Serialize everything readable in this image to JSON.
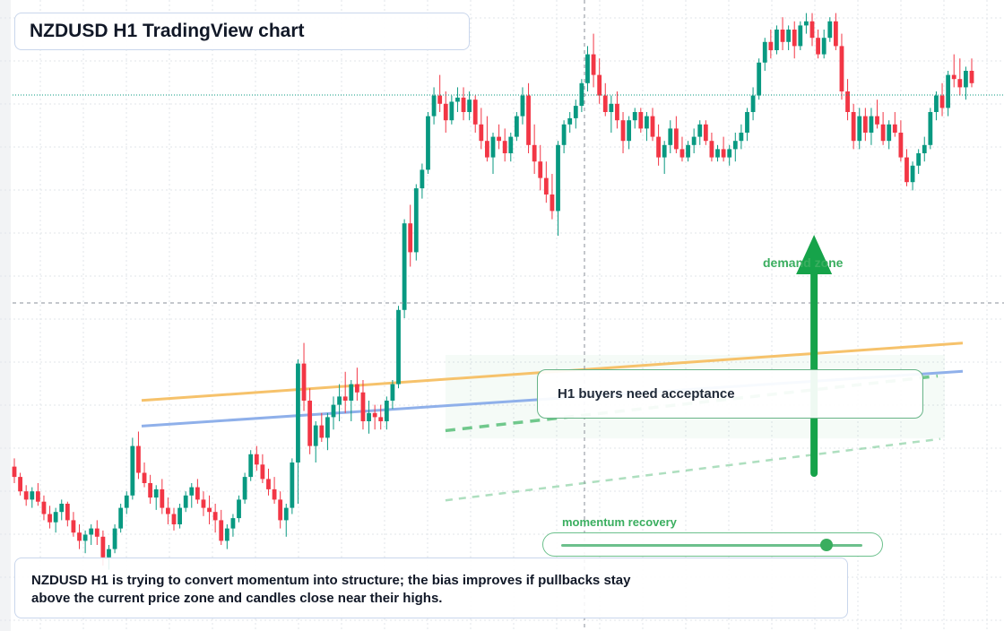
{
  "header": {
    "title": "NZDUSD H1 TradingView chart"
  },
  "annotations": {
    "callout": "H1 buyers need acceptance",
    "demand_label": "demand zone",
    "momentum_label": "momentum recovery",
    "momentum_level": 0.88,
    "caption_line1": "NZDUSD H1 is trying to convert momentum into structure; the bias improves if pullbacks stay",
    "caption_line2": "above the current price zone and candles close near their highs."
  },
  "colors": {
    "bull": "#089981",
    "bear": "#f23645",
    "ma_fast": "#f6c26b",
    "ma_slow": "#8fb0ea",
    "zone": "#3aae5f",
    "arrow": "#16a34a"
  },
  "chart_data": {
    "type": "candlestick",
    "symbol": "NZDUSD",
    "timeframe": "H1",
    "y_range": [
      0,
      100
    ],
    "x_range": [
      0,
      100
    ],
    "grid": true,
    "candles": [
      [
        78,
        82,
        70,
        73
      ],
      [
        73,
        75,
        64,
        66
      ],
      [
        66,
        69,
        59,
        62
      ],
      [
        62,
        68,
        58,
        66
      ],
      [
        66,
        70,
        59,
        61
      ],
      [
        61,
        64,
        52,
        55
      ],
      [
        55,
        59,
        48,
        51
      ],
      [
        51,
        58,
        46,
        56
      ],
      [
        56,
        62,
        52,
        60
      ],
      [
        60,
        61,
        49,
        52
      ],
      [
        52,
        56,
        44,
        46
      ],
      [
        46,
        50,
        38,
        42
      ],
      [
        42,
        47,
        36,
        45
      ],
      [
        45,
        50,
        40,
        48
      ],
      [
        48,
        52,
        40,
        44
      ],
      [
        44,
        47,
        30,
        34
      ],
      [
        34,
        40,
        28,
        38
      ],
      [
        38,
        50,
        36,
        48
      ],
      [
        48,
        60,
        46,
        58
      ],
      [
        58,
        66,
        55,
        64
      ],
      [
        64,
        92,
        62,
        88
      ],
      [
        88,
        95,
        72,
        75
      ],
      [
        75,
        80,
        68,
        70
      ],
      [
        70,
        74,
        60,
        63
      ],
      [
        63,
        69,
        57,
        67
      ],
      [
        67,
        72,
        55,
        58
      ],
      [
        58,
        63,
        50,
        55
      ],
      [
        55,
        58,
        47,
        50
      ],
      [
        50,
        60,
        48,
        58
      ],
      [
        58,
        66,
        56,
        64
      ],
      [
        64,
        70,
        58,
        68
      ],
      [
        68,
        72,
        60,
        62
      ],
      [
        62,
        66,
        54,
        58
      ],
      [
        58,
        64,
        50,
        56
      ],
      [
        56,
        60,
        46,
        52
      ],
      [
        52,
        57,
        40,
        42
      ],
      [
        42,
        50,
        38,
        48
      ],
      [
        48,
        55,
        44,
        53
      ],
      [
        53,
        64,
        51,
        62
      ],
      [
        62,
        75,
        60,
        73
      ],
      [
        73,
        86,
        71,
        84
      ],
      [
        84,
        88,
        76,
        79
      ],
      [
        79,
        84,
        70,
        72
      ],
      [
        72,
        77,
        64,
        67
      ],
      [
        67,
        73,
        60,
        62
      ],
      [
        62,
        66,
        48,
        52
      ],
      [
        52,
        60,
        44,
        58
      ],
      [
        58,
        82,
        55,
        80
      ],
      [
        80,
        130,
        60,
        128
      ],
      [
        128,
        138,
        105,
        110
      ],
      [
        110,
        116,
        84,
        88
      ],
      [
        88,
        100,
        80,
        98
      ],
      [
        98,
        104,
        90,
        92
      ],
      [
        92,
        104,
        86,
        102
      ],
      [
        102,
        112,
        96,
        108
      ],
      [
        108,
        118,
        100,
        112
      ],
      [
        112,
        124,
        104,
        110
      ],
      [
        110,
        120,
        100,
        118
      ],
      [
        118,
        126,
        110,
        114
      ],
      [
        114,
        120,
        96,
        100
      ],
      [
        100,
        110,
        94,
        104
      ],
      [
        104,
        108,
        96,
        102
      ],
      [
        102,
        108,
        96,
        100
      ],
      [
        100,
        112,
        96,
        110
      ],
      [
        110,
        120,
        106,
        118
      ],
      [
        118,
        156,
        116,
        154
      ],
      [
        154,
        198,
        150,
        196
      ],
      [
        196,
        205,
        175,
        182
      ],
      [
        182,
        215,
        178,
        213
      ],
      [
        213,
        225,
        208,
        222
      ],
      [
        222,
        250,
        220,
        248
      ],
      [
        248,
        262,
        244,
        258
      ],
      [
        258,
        268,
        250,
        254
      ],
      [
        254,
        260,
        240,
        246
      ],
      [
        246,
        258,
        244,
        255
      ],
      [
        255,
        262,
        250,
        257
      ],
      [
        257,
        262,
        246,
        250
      ],
      [
        250,
        260,
        246,
        256
      ],
      [
        256,
        258,
        240,
        244
      ],
      [
        244,
        252,
        232,
        236
      ],
      [
        236,
        248,
        226,
        228
      ],
      [
        228,
        240,
        220,
        238
      ],
      [
        238,
        244,
        232,
        236
      ],
      [
        236,
        242,
        226,
        230
      ],
      [
        230,
        240,
        226,
        238
      ],
      [
        238,
        250,
        236,
        248
      ],
      [
        248,
        262,
        244,
        258
      ],
      [
        258,
        264,
        230,
        234
      ],
      [
        234,
        244,
        220,
        226
      ],
      [
        226,
        234,
        212,
        218
      ],
      [
        218,
        226,
        206,
        210
      ],
      [
        210,
        220,
        198,
        202
      ],
      [
        202,
        236,
        190,
        234
      ],
      [
        234,
        246,
        230,
        244
      ],
      [
        244,
        250,
        240,
        247
      ],
      [
        247,
        256,
        242,
        253
      ],
      [
        253,
        266,
        250,
        264
      ],
      [
        264,
        282,
        260,
        278
      ],
      [
        278,
        288,
        262,
        268
      ],
      [
        268,
        276,
        254,
        258
      ],
      [
        258,
        264,
        248,
        250
      ],
      [
        250,
        258,
        240,
        254
      ],
      [
        254,
        260,
        242,
        246
      ],
      [
        246,
        250,
        230,
        236
      ],
      [
        236,
        248,
        232,
        246
      ],
      [
        246,
        252,
        242,
        250
      ],
      [
        250,
        252,
        240,
        242
      ],
      [
        242,
        250,
        236,
        248
      ],
      [
        248,
        252,
        236,
        238
      ],
      [
        238,
        244,
        224,
        228
      ],
      [
        228,
        236,
        220,
        234
      ],
      [
        234,
        246,
        230,
        242
      ],
      [
        242,
        248,
        230,
        232
      ],
      [
        232,
        238,
        226,
        228
      ],
      [
        228,
        236,
        226,
        234
      ],
      [
        234,
        242,
        230,
        238
      ],
      [
        238,
        246,
        234,
        244
      ],
      [
        244,
        246,
        234,
        236
      ],
      [
        236,
        240,
        226,
        228
      ],
      [
        228,
        234,
        226,
        232
      ],
      [
        232,
        238,
        226,
        228
      ],
      [
        228,
        234,
        224,
        232
      ],
      [
        232,
        240,
        226,
        236
      ],
      [
        236,
        244,
        232,
        240
      ],
      [
        240,
        252,
        236,
        250
      ],
      [
        250,
        262,
        246,
        258
      ],
      [
        258,
        276,
        256,
        274
      ],
      [
        274,
        286,
        270,
        284
      ],
      [
        284,
        290,
        276,
        280
      ],
      [
        280,
        292,
        278,
        290
      ],
      [
        290,
        296,
        280,
        284
      ],
      [
        284,
        292,
        280,
        290
      ],
      [
        290,
        294,
        276,
        282
      ],
      [
        282,
        294,
        280,
        292
      ],
      [
        292,
        298,
        288,
        294
      ],
      [
        294,
        298,
        282,
        286
      ],
      [
        286,
        290,
        276,
        278
      ],
      [
        278,
        290,
        276,
        286
      ],
      [
        286,
        296,
        284,
        294
      ],
      [
        294,
        298,
        280,
        282
      ],
      [
        282,
        288,
        256,
        260
      ],
      [
        260,
        266,
        246,
        250
      ],
      [
        250,
        254,
        232,
        236
      ],
      [
        236,
        252,
        232,
        248
      ],
      [
        248,
        252,
        236,
        240
      ],
      [
        240,
        252,
        234,
        248
      ],
      [
        248,
        256,
        242,
        244
      ],
      [
        244,
        250,
        234,
        236
      ],
      [
        236,
        246,
        232,
        244
      ],
      [
        244,
        250,
        238,
        240
      ],
      [
        240,
        246,
        226,
        228
      ],
      [
        228,
        232,
        214,
        216
      ],
      [
        216,
        226,
        212,
        224
      ],
      [
        224,
        232,
        220,
        230
      ],
      [
        230,
        238,
        226,
        234
      ],
      [
        234,
        252,
        232,
        250
      ],
      [
        250,
        260,
        246,
        258
      ],
      [
        258,
        264,
        248,
        252
      ],
      [
        252,
        270,
        248,
        268
      ],
      [
        268,
        278,
        262,
        266
      ],
      [
        266,
        276,
        258,
        262
      ],
      [
        262,
        272,
        256,
        270
      ],
      [
        270,
        276,
        262,
        264
      ]
    ],
    "ma_fast": [
      [
        0,
        31
      ],
      [
        100,
        53
      ]
    ],
    "ma_slow": [
      [
        0,
        26
      ],
      [
        100,
        47
      ]
    ],
    "demand_zone": {
      "x": [
        37,
        100
      ],
      "y": [
        24,
        56
      ]
    },
    "zone_line_upper": [
      [
        37,
        27
      ],
      [
        100,
        50
      ]
    ],
    "zone_line_lower": [
      [
        37,
        14
      ],
      [
        100,
        41
      ]
    ],
    "arrow": {
      "x": 82,
      "y": [
        25,
        56
      ]
    },
    "crosshair": {
      "x": 53,
      "y": 44.8
    },
    "last_price_y": 75.3
  }
}
